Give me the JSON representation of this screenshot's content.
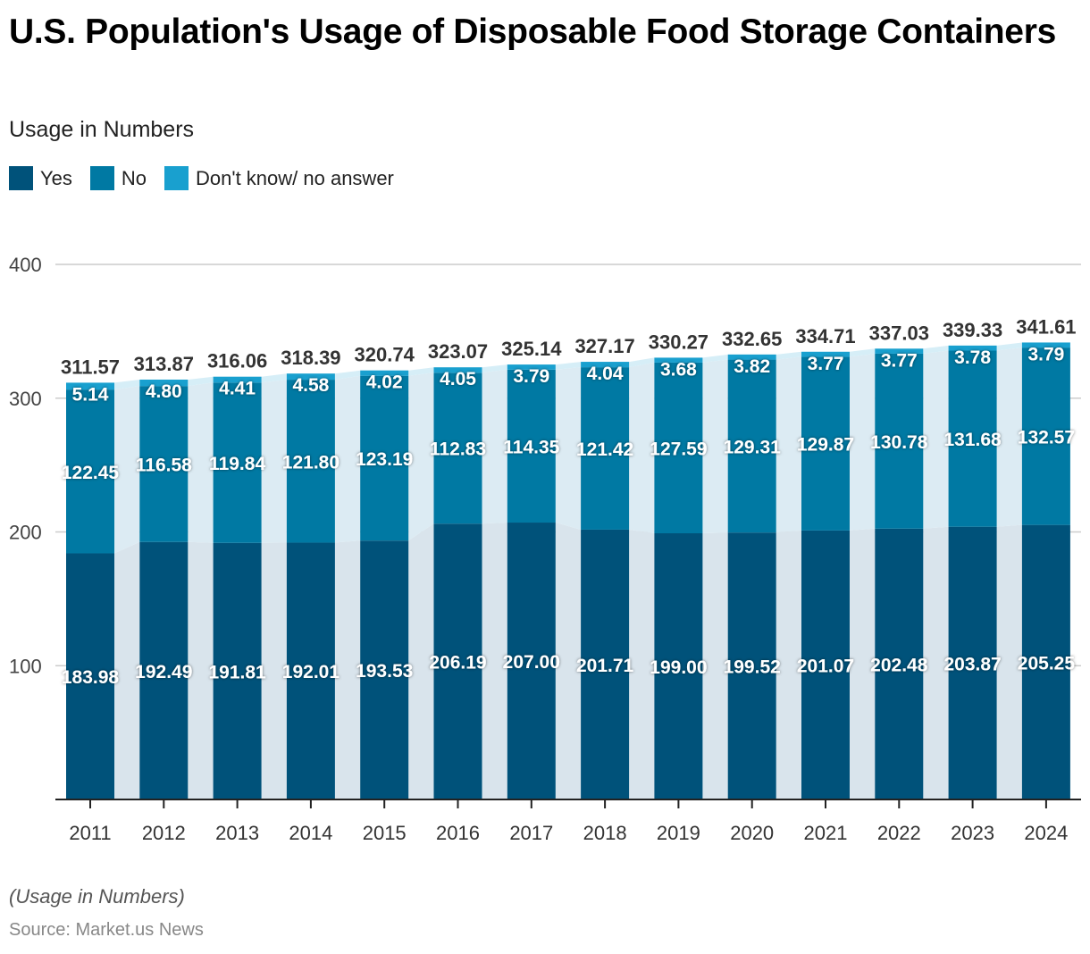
{
  "header": {
    "title": "U.S. Population's Usage of Disposable Food Storage Containers",
    "subtitle": "Usage in Numbers"
  },
  "footer": {
    "note": "(Usage in Numbers)",
    "source": "Source: Market.us News"
  },
  "colors": {
    "yes": "#00527a",
    "no": "#0079a3",
    "dont_know": "#19a0cf",
    "connector_yes": "#d9e4ec",
    "connector_no": "#dcebf3",
    "connector_dk": "#d6eef7",
    "grid": "#cccccc",
    "axis": "#222222"
  },
  "chart_data": {
    "type": "bar",
    "stacked": true,
    "title": "U.S. Population's Usage of Disposable Food Storage Containers",
    "subtitle": "Usage in Numbers",
    "xlabel": "",
    "ylabel": "",
    "ylim": [
      0,
      400
    ],
    "yticks": [
      100,
      200,
      300,
      400
    ],
    "grid": true,
    "legend_position": "top-left",
    "categories": [
      "2011",
      "2012",
      "2013",
      "2014",
      "2015",
      "2016",
      "2017",
      "2018",
      "2019",
      "2020",
      "2021",
      "2022",
      "2023",
      "2024"
    ],
    "series": [
      {
        "name": "Yes",
        "values": [
          183.98,
          192.49,
          191.81,
          192.01,
          193.53,
          206.19,
          207.0,
          201.71,
          199.0,
          199.52,
          201.07,
          202.48,
          203.87,
          205.25
        ]
      },
      {
        "name": "No",
        "values": [
          122.45,
          116.58,
          119.84,
          121.8,
          123.19,
          112.83,
          114.35,
          121.42,
          127.59,
          129.31,
          129.87,
          130.78,
          131.68,
          132.57
        ]
      },
      {
        "name": "Don't know/ no answer",
        "values": [
          5.14,
          4.8,
          4.41,
          4.58,
          4.02,
          4.05,
          3.79,
          4.04,
          3.68,
          3.82,
          3.77,
          3.77,
          3.78,
          3.79
        ]
      }
    ],
    "totals": [
      311.57,
      313.87,
      316.06,
      318.39,
      320.74,
      323.07,
      325.14,
      327.17,
      330.27,
      332.65,
      334.71,
      337.03,
      339.33,
      341.61
    ]
  }
}
